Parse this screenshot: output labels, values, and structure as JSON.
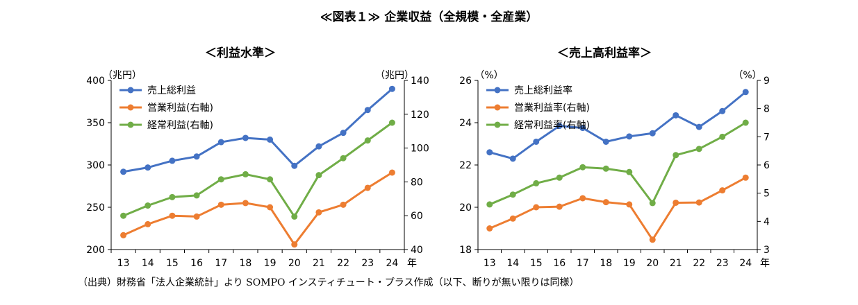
{
  "title": "≪図表１≫ 企業収益（全規模・全産業）",
  "source": "（出典）財務省「法人企業統計」より SOMPO インスティチュート・プラス作成（以下、断りが無い限りは同様）",
  "colors": {
    "blue": "#4472C4",
    "orange": "#ED7D31",
    "green": "#70AD47"
  },
  "chart_data": [
    {
      "type": "line",
      "subtitle": "＜利益水準＞",
      "left_unit": "（兆円）",
      "right_unit": "（兆円）",
      "x_unit": "年",
      "x": [
        "13",
        "14",
        "15",
        "16",
        "17",
        "18",
        "19",
        "20",
        "21",
        "22",
        "23",
        "24"
      ],
      "yleft": {
        "ylim": [
          200,
          400
        ],
        "ticks": [
          "200",
          "250",
          "300",
          "350",
          "400"
        ]
      },
      "yright": {
        "ylim": [
          40,
          140
        ],
        "ticks": [
          "40",
          "60",
          "80",
          "100",
          "120",
          "140"
        ]
      },
      "legend_position": "top-left",
      "series": [
        {
          "name": "売上総利益",
          "axis": "left",
          "color": "#4472C4",
          "values": [
            292,
            297,
            305,
            310,
            327,
            332,
            330,
            299,
            322,
            338,
            365,
            390
          ]
        },
        {
          "name": "営業利益(右軸)",
          "axis": "right",
          "color": "#ED7D31",
          "values": [
            48.5,
            55,
            60,
            59.5,
            66.5,
            67.5,
            65,
            43,
            62,
            66.5,
            76.5,
            85.5
          ]
        },
        {
          "name": "経常利益(右軸)",
          "axis": "right",
          "color": "#70AD47",
          "values": [
            60,
            66,
            71,
            72,
            81.5,
            84.5,
            81.5,
            59.5,
            84,
            94,
            104.5,
            115
          ]
        }
      ]
    },
    {
      "type": "line",
      "subtitle": "＜売上高利益率＞",
      "left_unit": "（%）",
      "right_unit": "（%）",
      "x_unit": "年",
      "x": [
        "13",
        "14",
        "15",
        "16",
        "17",
        "18",
        "19",
        "20",
        "21",
        "22",
        "23",
        "24"
      ],
      "yleft": {
        "ylim": [
          18,
          26
        ],
        "ticks": [
          "18",
          "20",
          "22",
          "24",
          "26"
        ]
      },
      "yright": {
        "ylim": [
          3,
          9
        ],
        "ticks": [
          "3",
          "4",
          "5",
          "6",
          "7",
          "8",
          "9"
        ]
      },
      "legend_position": "top-left",
      "series": [
        {
          "name": "売上総利益率",
          "axis": "left",
          "color": "#4472C4",
          "values": [
            22.6,
            22.3,
            23.1,
            23.85,
            23.75,
            23.1,
            23.35,
            23.5,
            24.35,
            23.8,
            24.55,
            25.45
          ]
        },
        {
          "name": "営業利益率(右軸)",
          "axis": "right",
          "color": "#ED7D31",
          "values": [
            3.75,
            4.1,
            4.5,
            4.52,
            4.82,
            4.68,
            4.6,
            3.35,
            4.66,
            4.67,
            5.1,
            5.55
          ]
        },
        {
          "name": "経常利益率(右軸)",
          "axis": "right",
          "color": "#70AD47",
          "values": [
            4.6,
            4.95,
            5.35,
            5.55,
            5.92,
            5.87,
            5.75,
            4.65,
            6.35,
            6.57,
            7.0,
            7.5
          ]
        }
      ]
    }
  ]
}
